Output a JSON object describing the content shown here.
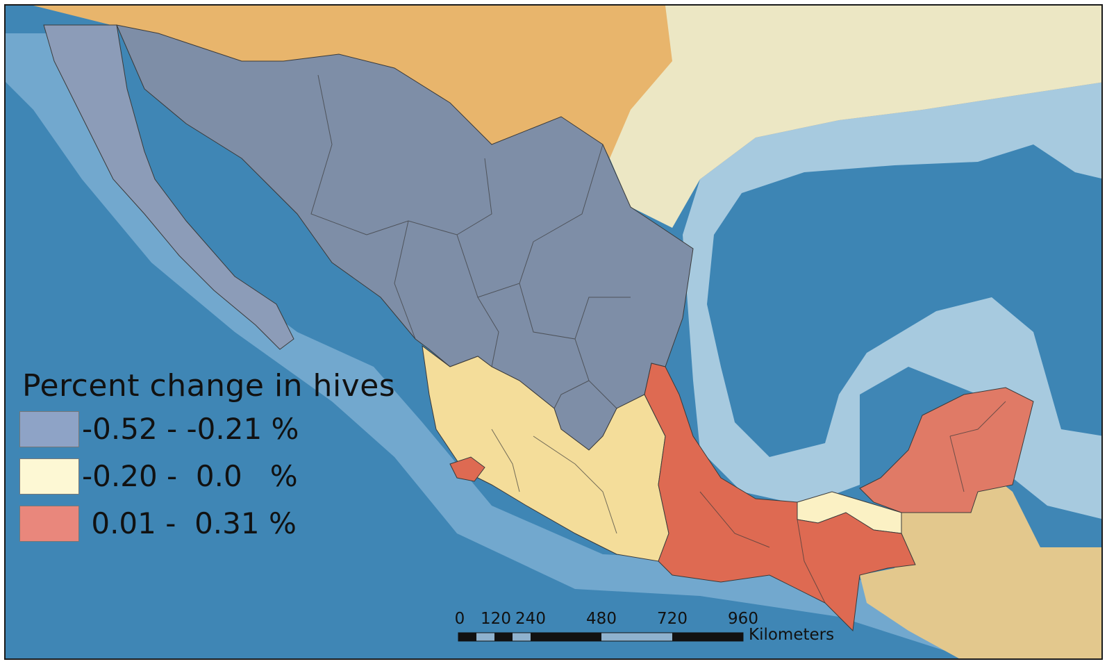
{
  "legend": {
    "title": "Percent change in hives",
    "classes": [
      {
        "label": "-0.52 - -0.21 %",
        "color": "#8ea3c6"
      },
      {
        "label": "-0.20 -  0.0   %",
        "color": "#fdf8d4"
      },
      {
        "label": " 0.01 -  0.31 %",
        "color": "#e9877c"
      }
    ]
  },
  "scalebar": {
    "ticks": [
      "0",
      "120",
      "240",
      "480",
      "720",
      "960"
    ],
    "unit": "Kilometers"
  },
  "colors": {
    "deep_ocean": "#3f86b5",
    "mid_ocean": "#74a9cb",
    "shelf": "#a9cde0",
    "land_north": "#e8b56c",
    "land_plain": "#ece7c4",
    "land_south": "#e3c88d",
    "decrease": "#7e8ea7",
    "no_change": "#f4dd9a",
    "increase": "#de6a52",
    "border": "#3a3a3a"
  }
}
